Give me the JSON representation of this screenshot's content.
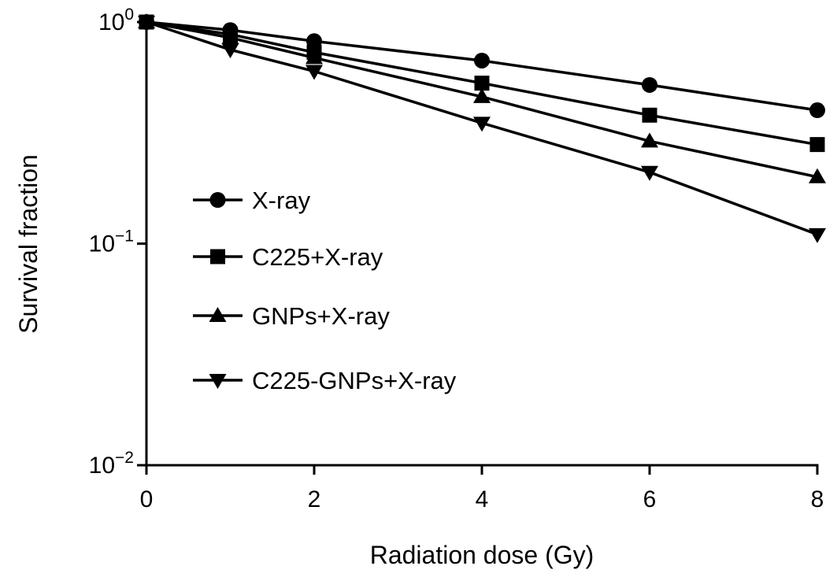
{
  "chart_data": {
    "type": "line",
    "xlabel": "Radiation dose (Gy)",
    "ylabel": "Survival fraction",
    "x_ticks": [
      0,
      2,
      4,
      6,
      8
    ],
    "xlim": [
      0,
      8
    ],
    "y_scale": "log",
    "ylim": [
      0.01,
      1
    ],
    "y_ticks": [
      {
        "value": 1,
        "base": "10",
        "exp": "0"
      },
      {
        "value": 0.1,
        "base": "10",
        "exp": "−1"
      },
      {
        "value": 0.01,
        "base": "10",
        "exp": "−2"
      }
    ],
    "grid": false,
    "legend_position": "center-left",
    "x": [
      0,
      1,
      2,
      4,
      6,
      8
    ],
    "series": [
      {
        "name": "X-ray",
        "marker": "circle",
        "values": [
          1.0,
          0.92,
          0.82,
          0.67,
          0.52,
          0.4
        ]
      },
      {
        "name": "C225+X-ray",
        "marker": "square",
        "values": [
          1.0,
          0.88,
          0.73,
          0.53,
          0.38,
          0.28
        ]
      },
      {
        "name": "GNPs+X-ray",
        "marker": "triangle-up",
        "values": [
          1.0,
          0.85,
          0.69,
          0.46,
          0.29,
          0.2
        ]
      },
      {
        "name": "C225-GNPs+X-ray",
        "marker": "triangle-down",
        "values": [
          1.0,
          0.75,
          0.6,
          0.35,
          0.21,
          0.11
        ]
      }
    ],
    "colors": {
      "line": "#000000",
      "background": "#ffffff"
    }
  }
}
